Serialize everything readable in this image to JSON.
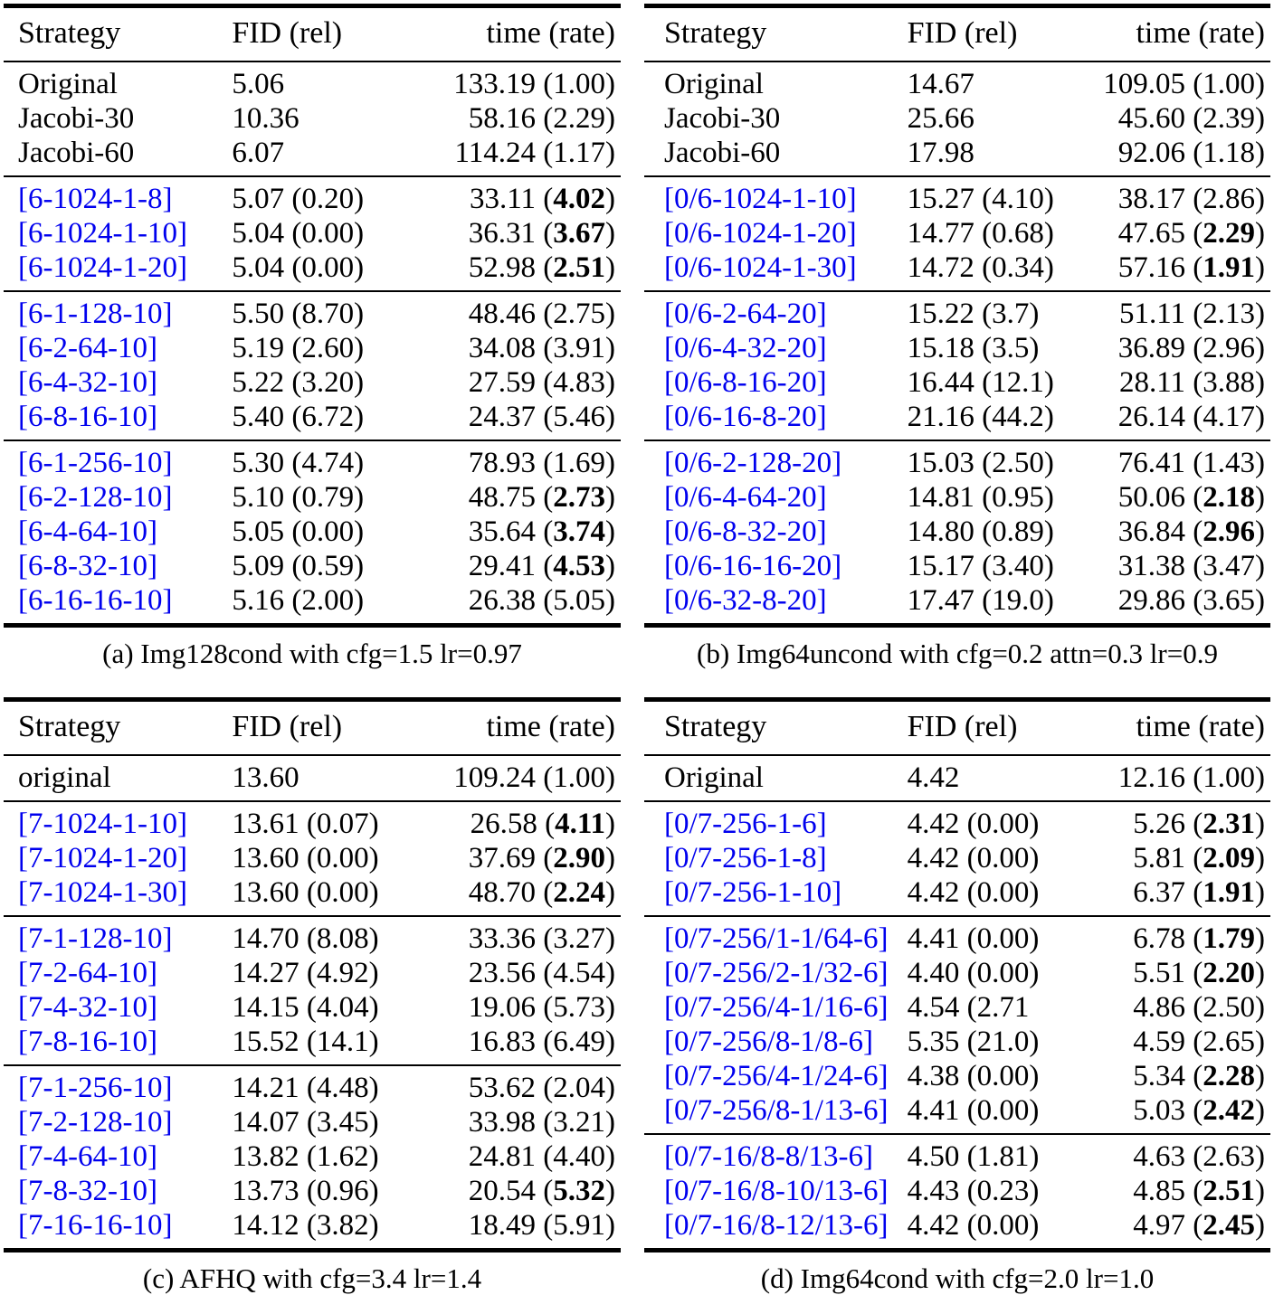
{
  "colors": {
    "strategy_blue": "#0000EE",
    "text": "#000000",
    "rule": "#000000"
  },
  "tables": [
    {
      "id": "a",
      "caption": "(a) Img128cond with cfg=1.5 lr=0.97",
      "headers": {
        "strategy": "Strategy",
        "fid": "FID (rel)",
        "time": "time (rate)"
      },
      "groups": [
        {
          "rows": [
            {
              "strategy": "Original",
              "blue": false,
              "fid": "5.06",
              "time": "133.19",
              "rate": "1.00",
              "bold_rate": false
            },
            {
              "strategy": "Jacobi-30",
              "blue": false,
              "fid": "10.36",
              "time": "58.16",
              "rate": "2.29",
              "bold_rate": false
            },
            {
              "strategy": "Jacobi-60",
              "blue": false,
              "fid": "6.07",
              "time": "114.24",
              "rate": "1.17",
              "bold_rate": false
            }
          ]
        },
        {
          "rows": [
            {
              "strategy": "[6-1024-1-8]",
              "blue": true,
              "fid": "5.07 (0.20)",
              "time": "33.11",
              "rate": "4.02",
              "bold_rate": true
            },
            {
              "strategy": "[6-1024-1-10]",
              "blue": true,
              "fid": "5.04 (0.00)",
              "time": "36.31",
              "rate": "3.67",
              "bold_rate": true
            },
            {
              "strategy": "[6-1024-1-20]",
              "blue": true,
              "fid": "5.04 (0.00)",
              "time": "52.98",
              "rate": "2.51",
              "bold_rate": true
            }
          ]
        },
        {
          "rows": [
            {
              "strategy": "[6-1-128-10]",
              "blue": true,
              "fid": "5.50 (8.70)",
              "time": "48.46",
              "rate": "2.75",
              "bold_rate": false
            },
            {
              "strategy": "[6-2-64-10]",
              "blue": true,
              "fid": "5.19 (2.60)",
              "time": "34.08",
              "rate": "3.91",
              "bold_rate": false
            },
            {
              "strategy": "[6-4-32-10]",
              "blue": true,
              "fid": "5.22 (3.20)",
              "time": "27.59",
              "rate": "4.83",
              "bold_rate": false
            },
            {
              "strategy": "[6-8-16-10]",
              "blue": true,
              "fid": "5.40 (6.72)",
              "time": "24.37",
              "rate": "5.46",
              "bold_rate": false
            }
          ]
        },
        {
          "rows": [
            {
              "strategy": "[6-1-256-10]",
              "blue": true,
              "fid": "5.30 (4.74)",
              "time": "78.93",
              "rate": "1.69",
              "bold_rate": false
            },
            {
              "strategy": "[6-2-128-10]",
              "blue": true,
              "fid": "5.10 (0.79)",
              "time": "48.75",
              "rate": "2.73",
              "bold_rate": true
            },
            {
              "strategy": "[6-4-64-10]",
              "blue": true,
              "fid": "5.05 (0.00)",
              "time": "35.64",
              "rate": "3.74",
              "bold_rate": true
            },
            {
              "strategy": "[6-8-32-10]",
              "blue": true,
              "fid": "5.09 (0.59)",
              "time": "29.41",
              "rate": "4.53",
              "bold_rate": true
            },
            {
              "strategy": "[6-16-16-10]",
              "blue": true,
              "fid": "5.16 (2.00)",
              "time": "26.38",
              "rate": "5.05",
              "bold_rate": false
            }
          ]
        }
      ]
    },
    {
      "id": "b",
      "caption": "(b) Img64uncond with cfg=0.2 attn=0.3 lr=0.9",
      "headers": {
        "strategy": "Strategy",
        "fid": "FID (rel)",
        "time": "time (rate)"
      },
      "groups": [
        {
          "rows": [
            {
              "strategy": "Original",
              "blue": false,
              "fid": "14.67",
              "time": "109.05",
              "rate": "1.00",
              "bold_rate": false
            },
            {
              "strategy": "Jacobi-30",
              "blue": false,
              "fid": "25.66",
              "time": "45.60",
              "rate": "2.39",
              "bold_rate": false
            },
            {
              "strategy": "Jacobi-60",
              "blue": false,
              "fid": "17.98",
              "time": "92.06",
              "rate": "1.18",
              "bold_rate": false
            }
          ]
        },
        {
          "rows": [
            {
              "strategy": "[0/6-1024-1-10]",
              "blue": true,
              "fid": "15.27 (4.10)",
              "time": "38.17",
              "rate": "2.86",
              "bold_rate": false
            },
            {
              "strategy": "[0/6-1024-1-20]",
              "blue": true,
              "fid": "14.77 (0.68)",
              "time": "47.65",
              "rate": "2.29",
              "bold_rate": true
            },
            {
              "strategy": "[0/6-1024-1-30]",
              "blue": true,
              "fid": "14.72 (0.34)",
              "time": "57.16",
              "rate": "1.91",
              "bold_rate": true
            }
          ]
        },
        {
          "rows": [
            {
              "strategy": "[0/6-2-64-20]",
              "blue": true,
              "fid": "15.22 (3.7)",
              "time": "51.11",
              "rate": "2.13",
              "bold_rate": false
            },
            {
              "strategy": "[0/6-4-32-20]",
              "blue": true,
              "fid": "15.18 (3.5)",
              "time": "36.89",
              "rate": "2.96",
              "bold_rate": false
            },
            {
              "strategy": "[0/6-8-16-20]",
              "blue": true,
              "fid": "16.44 (12.1)",
              "time": "28.11",
              "rate": "3.88",
              "bold_rate": false
            },
            {
              "strategy": "[0/6-16-8-20]",
              "blue": true,
              "fid": "21.16 (44.2)",
              "time": "26.14",
              "rate": "4.17",
              "bold_rate": false
            }
          ]
        },
        {
          "rows": [
            {
              "strategy": "[0/6-2-128-20]",
              "blue": true,
              "fid": "15.03 (2.50)",
              "time": "76.41",
              "rate": "1.43",
              "bold_rate": false
            },
            {
              "strategy": "[0/6-4-64-20]",
              "blue": true,
              "fid": "14.81 (0.95)",
              "time": "50.06",
              "rate": "2.18",
              "bold_rate": true
            },
            {
              "strategy": "[0/6-8-32-20]",
              "blue": true,
              "fid": "14.80 (0.89)",
              "time": "36.84",
              "rate": "2.96",
              "bold_rate": true
            },
            {
              "strategy": "[0/6-16-16-20]",
              "blue": true,
              "fid": "15.17 (3.40)",
              "time": "31.38",
              "rate": "3.47",
              "bold_rate": false
            },
            {
              "strategy": "[0/6-32-8-20]",
              "blue": true,
              "fid": "17.47 (19.0)",
              "time": "29.86",
              "rate": "3.65",
              "bold_rate": false
            }
          ]
        }
      ]
    },
    {
      "id": "c",
      "caption": "(c) AFHQ with cfg=3.4 lr=1.4",
      "headers": {
        "strategy": "Strategy",
        "fid": "FID (rel)",
        "time": "time (rate)"
      },
      "groups": [
        {
          "rows": [
            {
              "strategy": "original",
              "blue": false,
              "fid": "13.60",
              "time": "109.24",
              "rate": "1.00",
              "bold_rate": false
            }
          ]
        },
        {
          "rows": [
            {
              "strategy": "[7-1024-1-10]",
              "blue": true,
              "fid": "13.61 (0.07)",
              "time": "26.58",
              "rate": "4.11",
              "bold_rate": true
            },
            {
              "strategy": "[7-1024-1-20]",
              "blue": true,
              "fid": "13.60 (0.00)",
              "time": "37.69",
              "rate": "2.90",
              "bold_rate": true
            },
            {
              "strategy": "[7-1024-1-30]",
              "blue": true,
              "fid": "13.60 (0.00)",
              "time": "48.70",
              "rate": "2.24",
              "bold_rate": true
            }
          ]
        },
        {
          "rows": [
            {
              "strategy": "[7-1-128-10]",
              "blue": true,
              "fid": "14.70 (8.08)",
              "time": "33.36",
              "rate": "3.27",
              "bold_rate": false
            },
            {
              "strategy": "[7-2-64-10]",
              "blue": true,
              "fid": "14.27 (4.92)",
              "time": "23.56",
              "rate": "4.54",
              "bold_rate": false
            },
            {
              "strategy": "[7-4-32-10]",
              "blue": true,
              "fid": "14.15 (4.04)",
              "time": "19.06",
              "rate": "5.73",
              "bold_rate": false
            },
            {
              "strategy": "[7-8-16-10]",
              "blue": true,
              "fid": "15.52 (14.1)",
              "time": "16.83",
              "rate": "6.49",
              "bold_rate": false
            }
          ]
        },
        {
          "rows": [
            {
              "strategy": "[7-1-256-10]",
              "blue": true,
              "fid": "14.21 (4.48)",
              "time": "53.62",
              "rate": "2.04",
              "bold_rate": false
            },
            {
              "strategy": "[7-2-128-10]",
              "blue": true,
              "fid": "14.07 (3.45)",
              "time": "33.98",
              "rate": "3.21",
              "bold_rate": false
            },
            {
              "strategy": "[7-4-64-10]",
              "blue": true,
              "fid": "13.82 (1.62)",
              "time": "24.81",
              "rate": "4.40",
              "bold_rate": false
            },
            {
              "strategy": "[7-8-32-10]",
              "blue": true,
              "fid": "13.73 (0.96)",
              "time": "20.54",
              "rate": "5.32",
              "bold_rate": true
            },
            {
              "strategy": "[7-16-16-10]",
              "blue": true,
              "fid": "14.12 (3.82)",
              "time": "18.49",
              "rate": "5.91",
              "bold_rate": false
            }
          ]
        }
      ]
    },
    {
      "id": "d",
      "caption": "(d) Img64cond with cfg=2.0 lr=1.0",
      "headers": {
        "strategy": "Strategy",
        "fid": "FID (rel)",
        "time": "time (rate)"
      },
      "groups": [
        {
          "rows": [
            {
              "strategy": "Original",
              "blue": false,
              "fid": "4.42",
              "time": "12.16",
              "rate": "1.00",
              "bold_rate": false
            }
          ]
        },
        {
          "rows": [
            {
              "strategy": "[0/7-256-1-6]",
              "blue": true,
              "fid": "4.42 (0.00)",
              "time": "5.26",
              "rate": "2.31",
              "bold_rate": true
            },
            {
              "strategy": "[0/7-256-1-8]",
              "blue": true,
              "fid": "4.42 (0.00)",
              "time": "5.81",
              "rate": "2.09",
              "bold_rate": true
            },
            {
              "strategy": "[0/7-256-1-10]",
              "blue": true,
              "fid": "4.42 (0.00)",
              "time": "6.37",
              "rate": "1.91",
              "bold_rate": true
            }
          ]
        },
        {
          "rows": [
            {
              "strategy": "[0/7-256/1-1/64-6]",
              "blue": true,
              "fid": "4.41 (0.00)",
              "time": "6.78",
              "rate": "1.79",
              "bold_rate": true
            },
            {
              "strategy": "[0/7-256/2-1/32-6]",
              "blue": true,
              "fid": "4.40 (0.00)",
              "time": "5.51",
              "rate": "2.20",
              "bold_rate": true
            },
            {
              "strategy": "[0/7-256/4-1/16-6]",
              "blue": true,
              "fid": "4.54 (2.71",
              "time": "4.86",
              "rate": "2.50",
              "bold_rate": false
            },
            {
              "strategy": "[0/7-256/8-1/8-6]",
              "blue": true,
              "fid": "5.35 (21.0)",
              "time": "4.59",
              "rate": "2.65",
              "bold_rate": false
            },
            {
              "strategy": "[0/7-256/4-1/24-6]",
              "blue": true,
              "fid": "4.38 (0.00)",
              "time": "5.34",
              "rate": "2.28",
              "bold_rate": true
            },
            {
              "strategy": "[0/7-256/8-1/13-6]",
              "blue": true,
              "fid": "4.41 (0.00)",
              "time": "5.03",
              "rate": "2.42",
              "bold_rate": true
            }
          ]
        },
        {
          "rows": [
            {
              "strategy": "[0/7-16/8-8/13-6]",
              "blue": true,
              "fid": "4.50 (1.81)",
              "time": "4.63",
              "rate": "2.63",
              "bold_rate": false
            },
            {
              "strategy": "[0/7-16/8-10/13-6]",
              "blue": true,
              "fid": "4.43 (0.23)",
              "time": "4.85",
              "rate": "2.51",
              "bold_rate": true
            },
            {
              "strategy": "[0/7-16/8-12/13-6]",
              "blue": true,
              "fid": "4.42 (0.00)",
              "time": "4.97",
              "rate": "2.45",
              "bold_rate": true
            }
          ]
        }
      ]
    }
  ]
}
